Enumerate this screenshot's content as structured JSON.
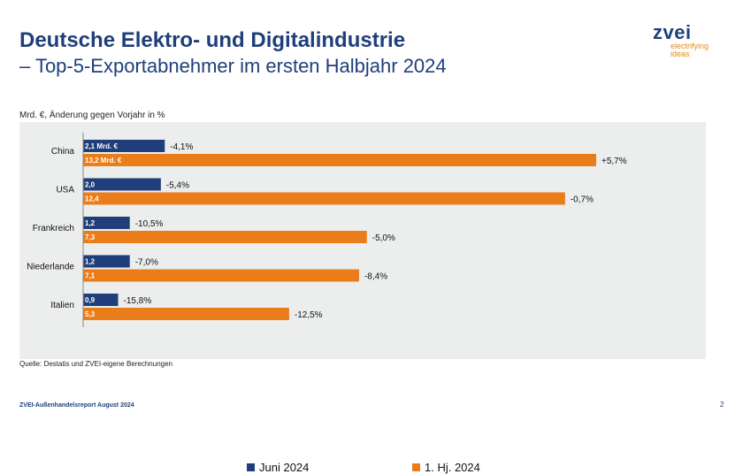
{
  "header": {
    "title_line1": "Deutsche Elektro- und Digitalindustrie",
    "title_line2": "– Top-5-Exportabnehmer im ersten Halbjahr 2024"
  },
  "logo": {
    "word": "zvei",
    "tagline_1": "electrifying",
    "tagline_2": "ideas"
  },
  "chart_data": {
    "type": "bar",
    "orientation": "horizontal",
    "ylabel": "Mrd. €, Änderung gegen Vorjahr in %",
    "categories": [
      "China",
      "USA",
      "Frankreich",
      "Niederlande",
      "Italien"
    ],
    "series": [
      {
        "name": "Juni 2024",
        "color": "#203f7a",
        "values": [
          2.1,
          2.0,
          1.2,
          1.2,
          0.9
        ],
        "value_labels": [
          "2,1 Mrd. €",
          "2,0",
          "1,2",
          "1,2",
          "0,9"
        ],
        "change_labels": [
          "-4,1%",
          "-5,4%",
          "-10,5%",
          "-7,0%",
          "-15,8%"
        ]
      },
      {
        "name": "1. Hj. 2024",
        "color": "#ea7d1a",
        "values": [
          13.2,
          12.4,
          7.3,
          7.1,
          5.3
        ],
        "value_labels": [
          "13,2 Mrd. €",
          "12,4",
          "7,3",
          "7,1",
          "5,3"
        ],
        "change_labels": [
          "+5,7%",
          "-0,7%",
          "-5,0%",
          "-8,4%",
          "-12,5%"
        ]
      }
    ],
    "xlim": [
      0,
      13.2
    ],
    "legend": "bottom"
  },
  "source": "Quelle: Destatis und ZVEI-eigene Berechnungen",
  "footer": {
    "report": "ZVEI-Außenhandelsreport August 2024",
    "page": "2"
  }
}
